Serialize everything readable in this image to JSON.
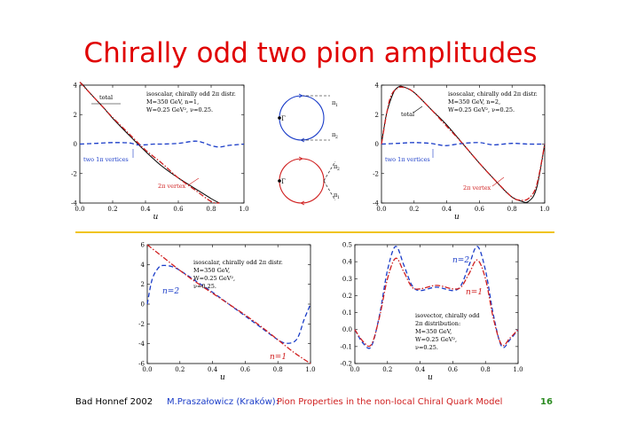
{
  "slide": {
    "title": "Chirally odd two pion amplitudes",
    "footer_left": "Bad Honnef 2002",
    "footer_author": "M.Praszałowicz (Kraków):",
    "footer_talk": "Pion Properties in the non-local Chiral Quark Model",
    "page_number": "16"
  },
  "colors": {
    "title": "#e00000",
    "blue": "#1a3cc8",
    "red": "#d02020",
    "black": "#000000",
    "divider": "#f0c419",
    "footer_blue": "#1a3cc8",
    "footer_red": "#d02020",
    "footer_green": "#2a8a20"
  },
  "diagram": {
    "top": {
      "gamma_label": "Γ",
      "pi1_label": "π",
      "pi1_sub": "1",
      "pi2_label": "π",
      "pi2_sub": "2"
    },
    "bottom": {
      "gamma_label": "Γ",
      "pi2_label": "π",
      "pi2_sub": "2",
      "pi1_label": "π",
      "pi1_sub": "1"
    }
  },
  "chart_data": [
    {
      "type": "line",
      "id": "top-left",
      "xlabel": "u",
      "xlim": [
        0,
        1
      ],
      "ylim": [
        -4,
        4
      ],
      "xticks": [
        "0.0",
        "0.2",
        "0.4",
        "0.6",
        "0.8",
        "1.0"
      ],
      "yticks": [
        "4",
        "2",
        "0",
        "-2",
        "-4"
      ],
      "annotation_lines": [
        "isoscalar, chirally odd 2π distr.",
        "M=350 GeV,  n=1,",
        "W=0.25 GeV², ν=0.25."
      ],
      "labels": {
        "total": "total",
        "vertices": "two 1π vertices",
        "vertex2": "2π vertex"
      },
      "series": [
        {
          "name": "total",
          "color": "black",
          "style": "solid",
          "x": [
            0.0,
            0.02,
            0.05,
            0.1,
            0.15,
            0.2,
            0.3,
            0.4,
            0.5,
            0.6,
            0.7,
            0.8,
            0.85
          ],
          "y": [
            4.2,
            4.0,
            3.6,
            3.0,
            2.4,
            1.75,
            0.6,
            -0.5,
            -1.5,
            -2.3,
            -3.0,
            -3.7,
            -4.0
          ]
        },
        {
          "name": "two 1π vertices",
          "color": "blue",
          "style": "dash",
          "x": [
            0.0,
            0.1,
            0.2,
            0.3,
            0.35,
            0.4,
            0.45,
            0.5,
            0.6,
            0.7,
            0.75,
            0.8,
            0.85,
            0.9,
            0.95,
            1.0
          ],
          "y": [
            0.0,
            0.05,
            0.1,
            0.08,
            -0.05,
            -0.05,
            0.0,
            0.0,
            0.05,
            0.2,
            0.1,
            -0.1,
            -0.2,
            -0.1,
            -0.05,
            0.0
          ]
        },
        {
          "name": "2π vertex",
          "color": "red",
          "style": "dashdot",
          "x": [
            0.0,
            0.1,
            0.2,
            0.3,
            0.4,
            0.5,
            0.6,
            0.7,
            0.8,
            0.85
          ],
          "y": [
            4.2,
            3.0,
            1.8,
            0.7,
            -0.4,
            -1.3,
            -2.3,
            -3.1,
            -3.9,
            -4.0
          ]
        }
      ]
    },
    {
      "type": "line",
      "id": "top-right",
      "xlabel": "u",
      "xlim": [
        0,
        1
      ],
      "ylim": [
        -4,
        4
      ],
      "xticks": [
        "0.0",
        "0.2",
        "0.4",
        "0.6",
        "0.8",
        "1.0"
      ],
      "yticks": [
        "4",
        "2",
        "0",
        "-2",
        "-4"
      ],
      "annotation_lines": [
        "isoscalar, chirally odd 2π distr.",
        "M=350 GeV,  n=2,",
        "W=0.25 GeV², ν=0.25."
      ],
      "labels": {
        "total": "total",
        "vertices": "two 1π vertices",
        "vertex2": "2π vertex"
      },
      "series": [
        {
          "name": "total",
          "color": "black",
          "style": "solid",
          "x": [
            0.0,
            0.03,
            0.07,
            0.1,
            0.13,
            0.2,
            0.3,
            0.4,
            0.5,
            0.6,
            0.7,
            0.75,
            0.8,
            0.85,
            0.9,
            0.95,
            1.0
          ],
          "y": [
            0.0,
            2.0,
            3.4,
            3.85,
            3.9,
            3.5,
            2.4,
            1.3,
            0.0,
            -1.3,
            -2.5,
            -3.1,
            -3.6,
            -3.85,
            -3.9,
            -3.0,
            0.0
          ]
        },
        {
          "name": "two 1π vertices",
          "color": "blue",
          "style": "dash",
          "x": [
            0.0,
            0.1,
            0.2,
            0.3,
            0.35,
            0.4,
            0.5,
            0.6,
            0.65,
            0.7,
            0.8,
            0.9,
            1.0
          ],
          "y": [
            0.0,
            0.05,
            0.1,
            0.05,
            -0.05,
            -0.1,
            0.05,
            0.1,
            0.0,
            -0.05,
            0.05,
            0.0,
            0.0
          ]
        },
        {
          "name": "2π vertex",
          "color": "red",
          "style": "dashdot",
          "x": [
            0.0,
            0.05,
            0.1,
            0.15,
            0.2,
            0.3,
            0.4,
            0.5,
            0.6,
            0.7,
            0.8,
            0.85,
            0.9,
            0.95,
            1.0
          ],
          "y": [
            0.0,
            3.0,
            3.8,
            3.8,
            3.5,
            2.4,
            1.2,
            0.0,
            -1.3,
            -2.5,
            -3.6,
            -3.8,
            -3.7,
            -2.8,
            0.0
          ]
        }
      ]
    },
    {
      "type": "line",
      "id": "bottom-left",
      "xlabel": "u",
      "xlim": [
        0,
        1
      ],
      "ylim": [
        -6,
        6
      ],
      "xticks": [
        "0.0",
        "0.2",
        "0.4",
        "0.6",
        "0.8",
        "1.0"
      ],
      "yticks": [
        "6",
        "4",
        "2",
        "0",
        "-2",
        "-4",
        "-6"
      ],
      "annotation_lines": [
        "isoscalar, chirally odd 2π distr.",
        "M=350 GeV,",
        "W=0.25 GeV²,",
        "ν=0.25."
      ],
      "labels": {
        "n2": "n=2",
        "n1": "n=1"
      },
      "series": [
        {
          "name": "n=2",
          "color": "blue",
          "style": "dash",
          "x": [
            0.0,
            0.03,
            0.07,
            0.1,
            0.15,
            0.2,
            0.3,
            0.4,
            0.5,
            0.6,
            0.7,
            0.8,
            0.85,
            0.9,
            0.93,
            0.96,
            1.0
          ],
          "y": [
            0.0,
            2.5,
            3.7,
            3.9,
            3.8,
            3.4,
            2.3,
            1.2,
            0.0,
            -1.2,
            -2.4,
            -3.6,
            -3.95,
            -3.8,
            -3.1,
            -1.6,
            0.0
          ]
        },
        {
          "name": "n=1",
          "color": "red",
          "style": "dashdot",
          "x": [
            0.0,
            0.1,
            0.2,
            0.3,
            0.4,
            0.5,
            0.6,
            0.7,
            0.8,
            0.9,
            1.0
          ],
          "y": [
            6.0,
            4.7,
            3.4,
            2.2,
            1.1,
            0.0,
            -1.1,
            -2.3,
            -3.6,
            -4.9,
            -6.0
          ]
        }
      ]
    },
    {
      "type": "line",
      "id": "bottom-right",
      "xlabel": "u",
      "xlim": [
        0,
        1
      ],
      "ylim": [
        -0.2,
        0.5
      ],
      "xticks": [
        "0.0",
        "0.2",
        "0.4",
        "0.6",
        "0.8",
        "1.0"
      ],
      "yticks": [
        "0.5",
        "0.4",
        "0.3",
        "0.2",
        "0.1",
        "0.0",
        "-0.1",
        "-0.2"
      ],
      "annotation_lines": [
        "isovector, chirally odd",
        "2π distribution:",
        "M=350 GeV,",
        "W=0.25 GeV²,",
        "ν=0.25."
      ],
      "labels": {
        "n2": "n=2",
        "n1": "n=1"
      },
      "series": [
        {
          "name": "n=2",
          "color": "blue",
          "style": "dash",
          "x": [
            0.0,
            0.05,
            0.1,
            0.15,
            0.2,
            0.25,
            0.3,
            0.35,
            0.4,
            0.5,
            0.6,
            0.65,
            0.7,
            0.75,
            0.8,
            0.85,
            0.9,
            0.95,
            1.0
          ],
          "y": [
            0.0,
            -0.08,
            -0.1,
            0.08,
            0.35,
            0.49,
            0.38,
            0.26,
            0.23,
            0.25,
            0.23,
            0.26,
            0.38,
            0.49,
            0.35,
            0.08,
            -0.1,
            -0.06,
            0.0
          ]
        },
        {
          "name": "n=1",
          "color": "red",
          "style": "dashdot",
          "x": [
            0.0,
            0.05,
            0.1,
            0.15,
            0.2,
            0.25,
            0.3,
            0.35,
            0.4,
            0.5,
            0.6,
            0.65,
            0.7,
            0.75,
            0.8,
            0.85,
            0.9,
            0.95,
            1.0
          ],
          "y": [
            0.0,
            -0.07,
            -0.09,
            0.07,
            0.3,
            0.42,
            0.34,
            0.25,
            0.24,
            0.26,
            0.24,
            0.25,
            0.33,
            0.41,
            0.3,
            0.06,
            -0.09,
            -0.05,
            0.0
          ]
        }
      ]
    }
  ]
}
